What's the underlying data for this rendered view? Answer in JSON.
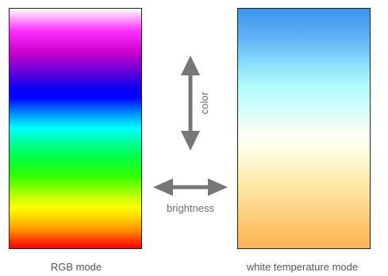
{
  "rgb_mode": {
    "label": "RGB mode"
  },
  "white_temperature_mode": {
    "label": "white temperature mode"
  },
  "arrows": {
    "vertical_label": "color",
    "horizontal_label": "brightness",
    "color": "#777777"
  }
}
